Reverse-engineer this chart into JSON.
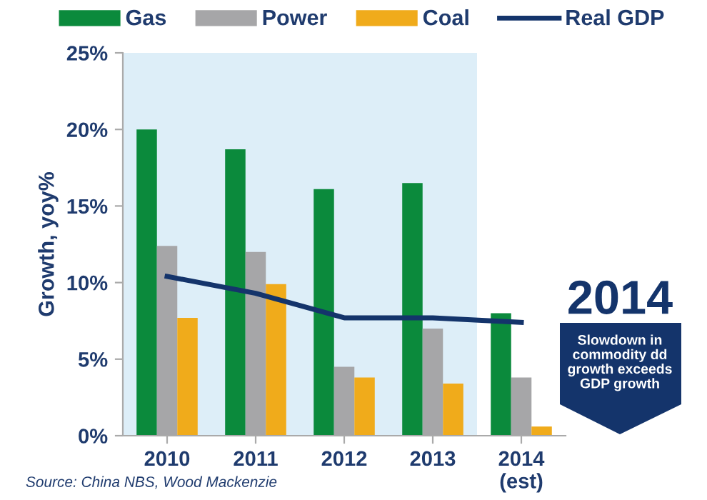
{
  "chart_data": {
    "type": "bar",
    "categories": [
      "2010",
      "2011",
      "2012",
      "2013",
      "2014\n(est)"
    ],
    "series": [
      {
        "name": "Gas",
        "color": "#0b8a3c",
        "values": [
          20.0,
          18.7,
          16.1,
          16.5,
          8.0
        ]
      },
      {
        "name": "Power",
        "color": "#a6a6a8",
        "values": [
          12.4,
          12.0,
          4.5,
          7.0,
          3.8
        ]
      },
      {
        "name": "Coal",
        "color": "#f0ab1b",
        "values": [
          7.7,
          9.9,
          3.8,
          3.4,
          0.6
        ]
      },
      {
        "name": "Real GDP",
        "type": "line",
        "color": "#14346b",
        "values": [
          10.4,
          9.3,
          7.7,
          7.7,
          7.4
        ]
      }
    ],
    "ylabel": "Growth, yoy%",
    "ylim": [
      0,
      25
    ],
    "yticks": [
      {
        "value": 0,
        "label": "0%"
      },
      {
        "value": 5,
        "label": "5%"
      },
      {
        "value": 10,
        "label": "10%"
      },
      {
        "value": 15,
        "label": "15%"
      },
      {
        "value": 20,
        "label": "20%"
      },
      {
        "value": 25,
        "label": "25%"
      }
    ],
    "bands": [
      {
        "axis": "x",
        "from": "2010",
        "to": "2013",
        "color": "#ddeef8"
      }
    ],
    "annotations": [
      "2014",
      "Slowdown in\ncommodity dd\ngrowth exceeds\nGDP growth",
      "Source: China NBS, Wood Mackenzie"
    ],
    "legend": "top",
    "grid": false
  }
}
